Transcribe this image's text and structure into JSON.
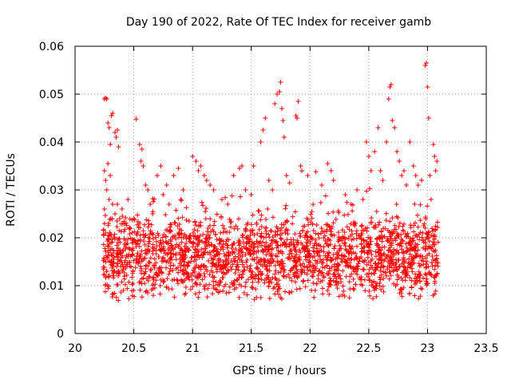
{
  "chart_data": {
    "type": "scatter",
    "title": "Day 190 of 2022, Rate Of TEC Index for receiver gamb",
    "xlabel": "GPS time / hours",
    "ylabel": "ROTI / TECUs",
    "xlim": [
      20,
      23.5
    ],
    "ylim": [
      0,
      0.06
    ],
    "x_ticks": [
      20,
      20.5,
      21,
      21.5,
      22,
      22.5,
      23,
      23.5
    ],
    "x_tick_labels": [
      "20",
      "20.5",
      "21",
      "21.5",
      "22",
      "22.5",
      "23",
      "23.5"
    ],
    "y_ticks": [
      0,
      0.01,
      0.02,
      0.03,
      0.04,
      0.05,
      0.06
    ],
    "y_tick_labels": [
      "0",
      "0.01",
      "0.02",
      "0.03",
      "0.04",
      "0.05",
      "0.06"
    ],
    "grid": true,
    "marker": "+",
    "color": "#ff0000",
    "x_range_of_data": [
      20.24,
      23.09
    ],
    "band_typical": [
      0.005,
      0.025
    ],
    "series": [
      {
        "name": "ROTI",
        "points": [
          [
            20.25,
            0.049
          ],
          [
            20.26,
            0.0492
          ],
          [
            20.27,
            0.049
          ],
          [
            20.28,
            0.044
          ],
          [
            20.29,
            0.043
          ],
          [
            20.3,
            0.0395
          ],
          [
            20.31,
            0.0455
          ],
          [
            20.32,
            0.046
          ],
          [
            20.34,
            0.042
          ],
          [
            20.35,
            0.041
          ],
          [
            20.36,
            0.0425
          ],
          [
            20.37,
            0.039
          ],
          [
            20.25,
            0.034
          ],
          [
            20.26,
            0.032
          ],
          [
            20.27,
            0.03
          ],
          [
            20.28,
            0.0355
          ],
          [
            20.29,
            0.028
          ],
          [
            20.3,
            0.033
          ],
          [
            20.25,
            0.026
          ],
          [
            20.26,
            0.021
          ],
          [
            20.32,
            0.027
          ],
          [
            20.34,
            0.025
          ],
          [
            20.36,
            0.027
          ],
          [
            20.38,
            0.024
          ],
          [
            20.4,
            0.026
          ],
          [
            20.42,
            0.023
          ],
          [
            20.45,
            0.028
          ],
          [
            20.47,
            0.022
          ],
          [
            20.5,
            0.024
          ],
          [
            20.52,
            0.0448
          ],
          [
            20.55,
            0.0395
          ],
          [
            20.57,
            0.0385
          ],
          [
            20.56,
            0.036
          ],
          [
            20.58,
            0.035
          ],
          [
            20.6,
            0.031
          ],
          [
            20.62,
            0.03
          ],
          [
            20.64,
            0.027
          ],
          [
            20.66,
            0.025
          ],
          [
            20.7,
            0.033
          ],
          [
            20.73,
            0.035
          ],
          [
            20.75,
            0.029
          ],
          [
            20.78,
            0.031
          ],
          [
            20.8,
            0.027
          ],
          [
            20.84,
            0.033
          ],
          [
            20.88,
            0.0345
          ],
          [
            20.9,
            0.028
          ],
          [
            20.92,
            0.03
          ],
          [
            21.0,
            0.037
          ],
          [
            21.03,
            0.036
          ],
          [
            21.05,
            0.034
          ],
          [
            21.07,
            0.035
          ],
          [
            21.1,
            0.033
          ],
          [
            21.12,
            0.032
          ],
          [
            21.15,
            0.031
          ],
          [
            21.18,
            0.03
          ],
          [
            21.25,
            0.028
          ],
          [
            21.3,
            0.027
          ],
          [
            21.35,
            0.033
          ],
          [
            21.4,
            0.0345
          ],
          [
            21.42,
            0.035
          ],
          [
            21.45,
            0.03
          ],
          [
            21.5,
            0.029
          ],
          [
            21.52,
            0.035
          ],
          [
            21.58,
            0.04
          ],
          [
            21.6,
            0.0425
          ],
          [
            21.62,
            0.045
          ],
          [
            21.65,
            0.032
          ],
          [
            21.68,
            0.03
          ],
          [
            21.7,
            0.048
          ],
          [
            21.72,
            0.05
          ],
          [
            21.74,
            0.0505
          ],
          [
            21.75,
            0.0525
          ],
          [
            21.76,
            0.047
          ],
          [
            21.77,
            0.0445
          ],
          [
            21.78,
            0.041
          ],
          [
            21.8,
            0.033
          ],
          [
            21.88,
            0.0455
          ],
          [
            21.89,
            0.045
          ],
          [
            21.9,
            0.0485
          ],
          [
            21.92,
            0.035
          ],
          [
            21.93,
            0.034
          ],
          [
            21.98,
            0.033
          ],
          [
            22.05,
            0.0338
          ],
          [
            22.1,
            0.031
          ],
          [
            22.15,
            0.0355
          ],
          [
            22.18,
            0.034
          ],
          [
            22.2,
            0.032
          ],
          [
            22.3,
            0.029
          ],
          [
            22.35,
            0.027
          ],
          [
            22.4,
            0.03
          ],
          [
            22.45,
            0.028
          ],
          [
            22.48,
            0.04
          ],
          [
            22.5,
            0.037
          ],
          [
            22.52,
            0.034
          ],
          [
            22.55,
            0.038
          ],
          [
            22.58,
            0.043
          ],
          [
            22.6,
            0.034
          ],
          [
            22.62,
            0.032
          ],
          [
            22.65,
            0.04
          ],
          [
            22.67,
            0.049
          ],
          [
            22.68,
            0.0515
          ],
          [
            22.69,
            0.052
          ],
          [
            22.7,
            0.0445
          ],
          [
            22.72,
            0.043
          ],
          [
            22.74,
            0.038
          ],
          [
            22.76,
            0.036
          ],
          [
            22.78,
            0.033
          ],
          [
            22.8,
            0.034
          ],
          [
            22.82,
            0.031
          ],
          [
            22.85,
            0.04
          ],
          [
            22.88,
            0.035
          ],
          [
            22.9,
            0.033
          ],
          [
            22.92,
            0.031
          ],
          [
            22.95,
            0.032
          ],
          [
            22.98,
            0.056
          ],
          [
            22.99,
            0.0565
          ],
          [
            23.0,
            0.0515
          ],
          [
            23.01,
            0.045
          ],
          [
            23.02,
            0.033
          ],
          [
            23.03,
            0.028
          ],
          [
            23.05,
            0.0395
          ],
          [
            23.06,
            0.037
          ],
          [
            23.07,
            0.034
          ],
          [
            23.08,
            0.036
          ]
        ],
        "note": "Plus the dense band of points between ~0.005 and ~0.025 ROTI across 20.24–23.09 h; generated by the drawing script as band samples."
      }
    ]
  }
}
